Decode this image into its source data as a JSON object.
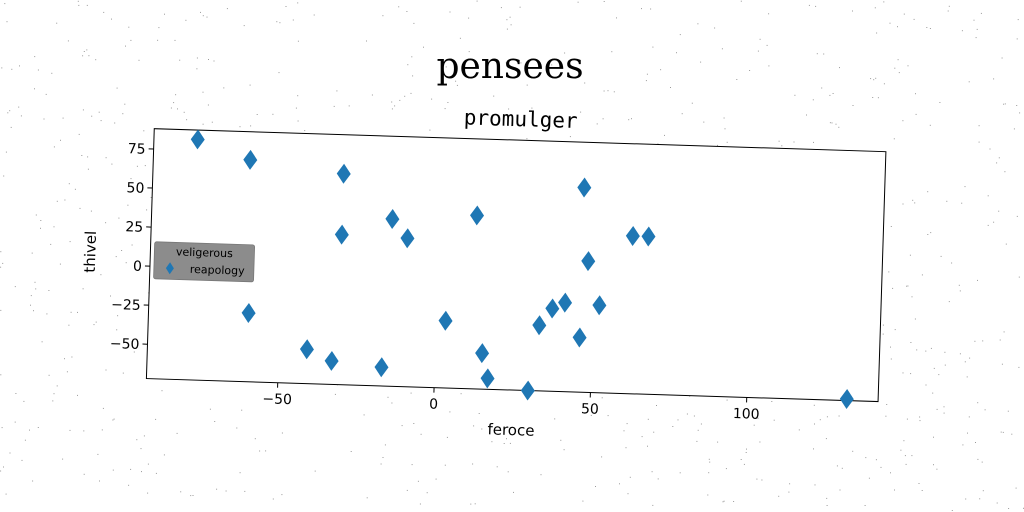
{
  "figure_title": "pensees",
  "chart_data": {
    "type": "scatter",
    "title": "promulger",
    "xlabel": "feroce",
    "ylabel": "thivel",
    "xlim": [
      -92,
      142
    ],
    "ylim": [
      -72,
      88
    ],
    "xticks": [
      -50,
      0,
      50,
      100
    ],
    "xtick_labels": [
      "−50",
      "0",
      "50",
      "100"
    ],
    "yticks": [
      -50,
      -25,
      0,
      25,
      50,
      75
    ],
    "ytick_labels": [
      "−50",
      "−25",
      "0",
      "25",
      "50",
      "75"
    ],
    "grid": false,
    "legend": {
      "title": "veligerous",
      "placement": "center-left"
    },
    "series": [
      {
        "name": "reapology",
        "marker": "diamond",
        "color": "#1f77b4",
        "points": [
          {
            "x": -78,
            "y": 82
          },
          {
            "x": -61,
            "y": 70
          },
          {
            "x": -31,
            "y": 63
          },
          {
            "x": -31,
            "y": 24
          },
          {
            "x": -15,
            "y": 35
          },
          {
            "x": -10,
            "y": 23
          },
          {
            "x": 12,
            "y": 39
          },
          {
            "x": 46,
            "y": 59
          },
          {
            "x": 48,
            "y": 12
          },
          {
            "x": 62,
            "y": 29
          },
          {
            "x": 67,
            "y": 29
          },
          {
            "x": -60,
            "y": -28
          },
          {
            "x": -41,
            "y": -50
          },
          {
            "x": -33,
            "y": -57
          },
          {
            "x": -17,
            "y": -60
          },
          {
            "x": 3,
            "y": -29
          },
          {
            "x": 15,
            "y": -49
          },
          {
            "x": 17,
            "y": -65
          },
          {
            "x": 30,
            "y": -72
          },
          {
            "x": 33,
            "y": -30
          },
          {
            "x": 37,
            "y": -19
          },
          {
            "x": 41,
            "y": -15
          },
          {
            "x": 46,
            "y": -37
          },
          {
            "x": 52,
            "y": -16
          },
          {
            "x": 132,
            "y": -71
          }
        ]
      }
    ]
  }
}
